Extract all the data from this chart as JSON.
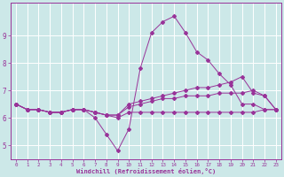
{
  "xlabel": "Windchill (Refroidissement éolien,°C)",
  "xlim": [
    -0.5,
    23.5
  ],
  "ylim": [
    4.5,
    10.2
  ],
  "yticks": [
    5,
    6,
    7,
    8,
    9
  ],
  "xticks": [
    0,
    1,
    2,
    3,
    4,
    5,
    6,
    7,
    8,
    9,
    10,
    11,
    12,
    13,
    14,
    15,
    16,
    17,
    18,
    19,
    20,
    21,
    22,
    23
  ],
  "bg_color": "#cce8e8",
  "grid_color": "#ffffff",
  "line_color": "#993399",
  "line1": {
    "x": [
      0,
      1,
      2,
      3,
      4,
      5,
      6,
      7,
      8,
      9,
      10,
      11,
      12,
      13,
      14,
      15,
      16,
      17,
      18,
      19,
      20,
      21,
      22,
      23
    ],
    "y": [
      6.5,
      6.3,
      6.3,
      6.2,
      6.2,
      6.3,
      6.3,
      6.2,
      6.1,
      6.0,
      6.2,
      6.2,
      6.2,
      6.2,
      6.2,
      6.2,
      6.2,
      6.2,
      6.2,
      6.2,
      6.2,
      6.2,
      6.3,
      6.3
    ]
  },
  "line2": {
    "x": [
      0,
      1,
      2,
      3,
      4,
      5,
      6,
      7,
      8,
      9,
      10,
      11,
      12,
      13,
      14,
      15,
      16,
      17,
      18,
      19,
      20,
      21,
      22,
      23
    ],
    "y": [
      6.5,
      6.3,
      6.3,
      6.2,
      6.2,
      6.3,
      6.3,
      6.2,
      6.1,
      6.1,
      6.4,
      6.5,
      6.6,
      6.7,
      6.7,
      6.8,
      6.8,
      6.8,
      6.9,
      6.9,
      6.9,
      7.0,
      6.8,
      6.3
    ]
  },
  "line3": {
    "x": [
      0,
      1,
      2,
      3,
      4,
      5,
      6,
      7,
      8,
      9,
      10,
      11,
      12,
      13,
      14,
      15,
      16,
      17,
      18,
      19,
      20,
      21,
      22,
      23
    ],
    "y": [
      6.5,
      6.3,
      6.3,
      6.2,
      6.2,
      6.3,
      6.3,
      6.2,
      6.1,
      6.1,
      6.5,
      6.6,
      6.7,
      6.8,
      6.9,
      7.0,
      7.1,
      7.1,
      7.2,
      7.3,
      7.5,
      6.9,
      6.8,
      6.3
    ]
  },
  "line4": {
    "x": [
      0,
      1,
      2,
      3,
      4,
      5,
      6,
      7,
      8,
      9,
      10,
      11,
      12,
      13,
      14,
      15,
      16,
      17,
      18,
      19,
      20,
      21,
      22,
      23
    ],
    "y": [
      6.5,
      6.3,
      6.3,
      6.2,
      6.2,
      6.3,
      6.3,
      6.0,
      5.4,
      4.8,
      5.6,
      7.8,
      9.1,
      9.5,
      9.7,
      9.1,
      8.4,
      8.1,
      7.6,
      7.2,
      6.5,
      6.5,
      6.3,
      6.3
    ]
  }
}
